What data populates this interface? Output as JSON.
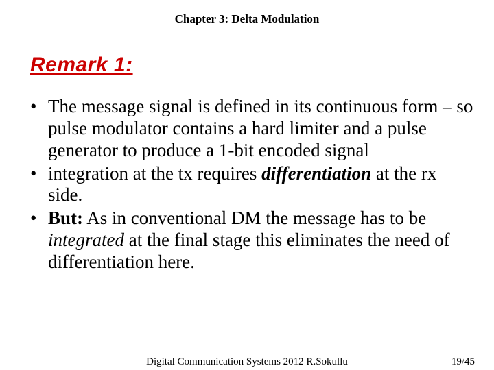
{
  "header": {
    "chapter": "Chapter 3: Delta Modulation"
  },
  "title": {
    "text": "Remark 1:",
    "color": "#cc0000"
  },
  "bullets": [
    {
      "pre": "The message signal is defined in its continuous form – so pulse modulator contains a hard limiter and a pulse generator to produce a 1-bit encoded signal"
    },
    {
      "pre": "integration at the tx requires ",
      "em": "differentiation",
      "post": " at the rx side."
    },
    {
      "strong": "But:",
      "pre2": " As in conventional DM the message has to be ",
      "em": "integrated",
      "post": " at the final stage this eliminates the need of differentiation here."
    }
  ],
  "footer": {
    "center": "Digital Communication Systems 2012  R.Sokullu",
    "right": "19/45"
  }
}
